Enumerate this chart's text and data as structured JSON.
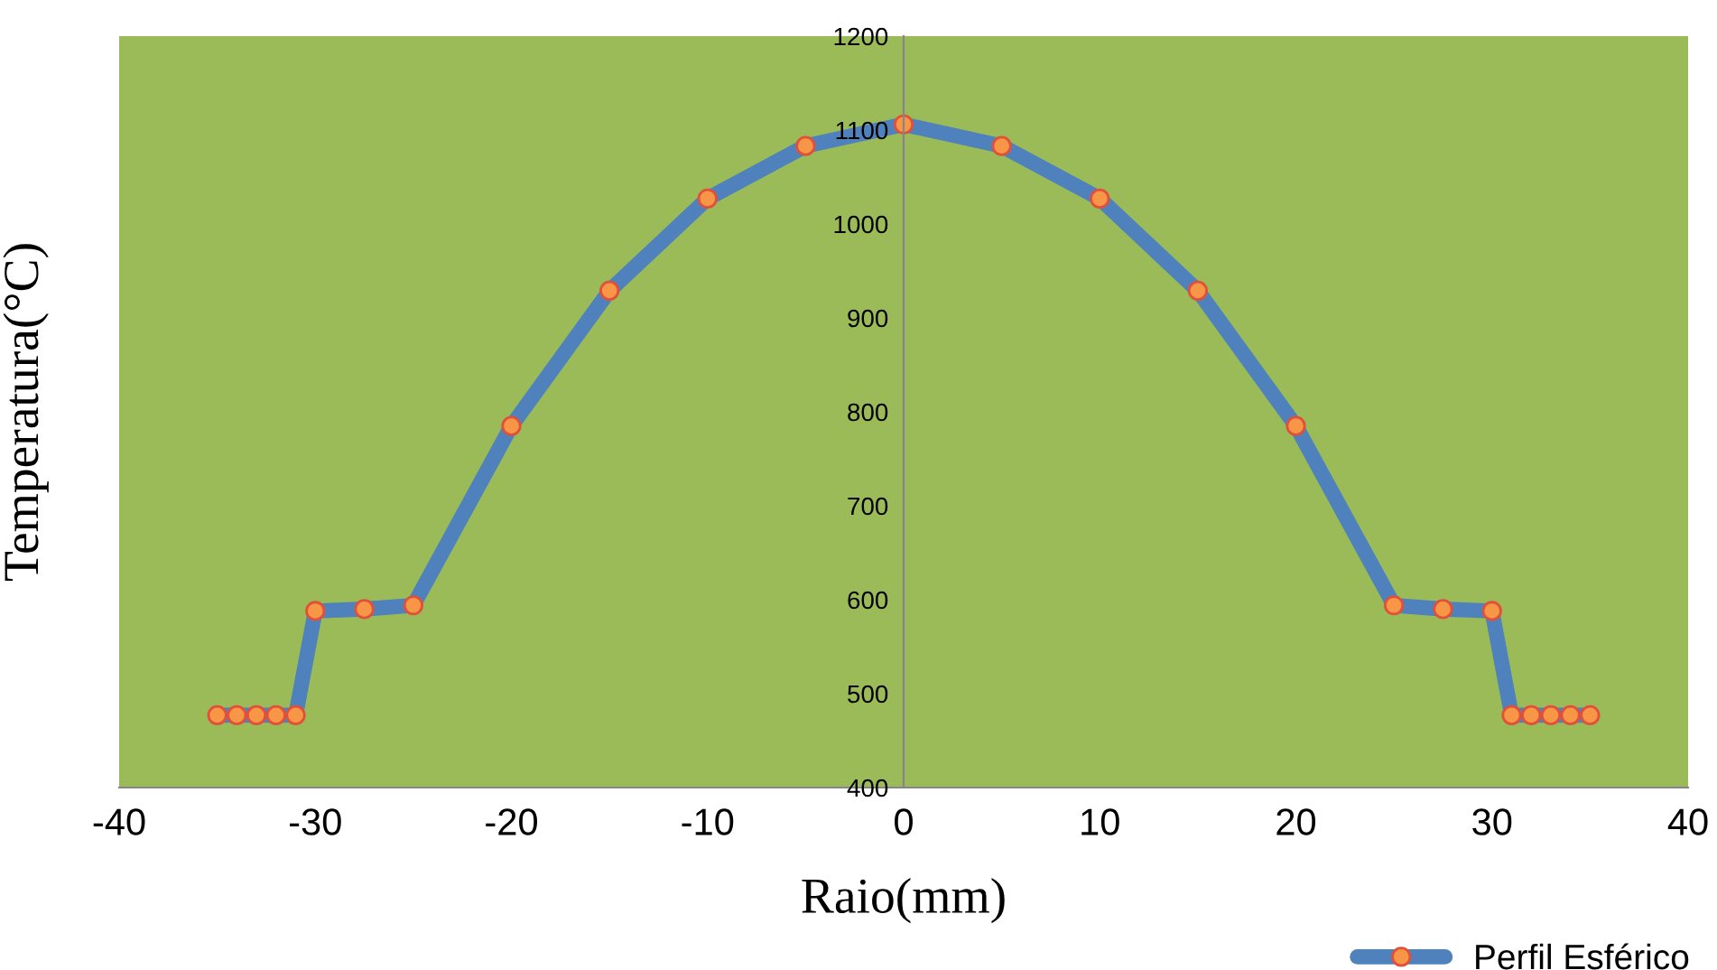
{
  "chart_data": {
    "type": "line",
    "xlabel": "Raio(mm)",
    "ylabel": "Temperatura(°C)",
    "series": [
      {
        "name": "Perfil Esférico",
        "color": "#4f81bd",
        "x": [
          -35,
          -34,
          -33,
          -32,
          -31,
          -30,
          -27.5,
          -25,
          -20,
          -15,
          -10,
          -5,
          0,
          5,
          10,
          15,
          20,
          25,
          27.5,
          30,
          31,
          32,
          33,
          34,
          35
        ],
        "values": [
          477,
          477,
          477,
          477,
          477,
          588,
          590,
          594,
          785,
          929,
          1027,
          1083,
          1106,
          1083,
          1027,
          929,
          785,
          594,
          590,
          588,
          477,
          477,
          477,
          477,
          477
        ]
      }
    ],
    "xlim": [
      -40,
      40
    ],
    "xticks": [
      -40,
      -30,
      -20,
      -10,
      0,
      10,
      20,
      30,
      40
    ],
    "ylim": [
      400,
      1200
    ],
    "yticks": [
      400,
      500,
      600,
      700,
      800,
      900,
      1000,
      1100,
      1200
    ],
    "marker": "circle",
    "line_style": "solid",
    "grid": false,
    "legend": "bottom right"
  }
}
